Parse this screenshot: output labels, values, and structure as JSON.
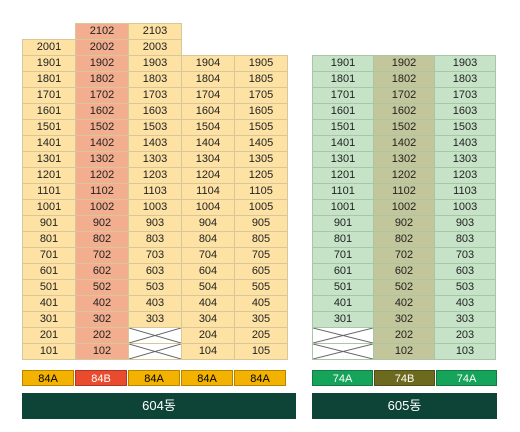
{
  "colors": {
    "type_84A": "#f3b200",
    "type_84B": "#e94b2f",
    "type_74A": "#16a45a",
    "type_74B": "#6b6a1f",
    "label_bg": "#0e4438"
  },
  "building_604": {
    "label": "604동",
    "columns": [
      {
        "type": "84A",
        "units": [
          "101",
          "201",
          "301",
          "401",
          "501",
          "601",
          "701",
          "801",
          "901",
          "1001",
          "1101",
          "1201",
          "1301",
          "1401",
          "1501",
          "1601",
          "1701",
          "1801",
          "1901",
          "2001"
        ]
      },
      {
        "type": "84B",
        "units": [
          "102",
          "202",
          "302",
          "402",
          "502",
          "602",
          "702",
          "802",
          "902",
          "1002",
          "1102",
          "1202",
          "1302",
          "1402",
          "1502",
          "1602",
          "1702",
          "1802",
          "1902",
          "2002",
          "2102"
        ]
      },
      {
        "type": "84A",
        "units": [
          "",
          "",
          "303",
          "403",
          "503",
          "603",
          "703",
          "803",
          "903",
          "1003",
          "1103",
          "1203",
          "1303",
          "1403",
          "1503",
          "1603",
          "1703",
          "1803",
          "1903",
          "2003",
          "2103"
        ]
      },
      {
        "type": "84A",
        "units": [
          "104",
          "204",
          "304",
          "404",
          "504",
          "604",
          "704",
          "804",
          "904",
          "1004",
          "1104",
          "1204",
          "1304",
          "1404",
          "1504",
          "1604",
          "1704",
          "1804",
          "1904"
        ]
      },
      {
        "type": "84A",
        "units": [
          "105",
          "205",
          "305",
          "405",
          "505",
          "605",
          "705",
          "805",
          "905",
          "1005",
          "1105",
          "1205",
          "1305",
          "1405",
          "1505",
          "1605",
          "1705",
          "1805",
          "1905"
        ]
      }
    ]
  },
  "building_605": {
    "label": "605동",
    "columns": [
      {
        "type": "74A",
        "units": [
          "",
          "",
          "301",
          "401",
          "501",
          "601",
          "701",
          "801",
          "901",
          "1001",
          "1101",
          "1201",
          "1301",
          "1401",
          "1501",
          "1601",
          "1701",
          "1801",
          "1901"
        ]
      },
      {
        "type": "74B",
        "units": [
          "102",
          "202",
          "302",
          "402",
          "502",
          "602",
          "702",
          "802",
          "902",
          "1002",
          "1102",
          "1202",
          "1302",
          "1402",
          "1502",
          "1602",
          "1702",
          "1802",
          "1902"
        ]
      },
      {
        "type": "74A",
        "units": [
          "103",
          "203",
          "303",
          "403",
          "503",
          "603",
          "703",
          "803",
          "903",
          "1003",
          "1103",
          "1203",
          "1303",
          "1403",
          "1503",
          "1603",
          "1703",
          "1803",
          "1903"
        ]
      }
    ]
  }
}
